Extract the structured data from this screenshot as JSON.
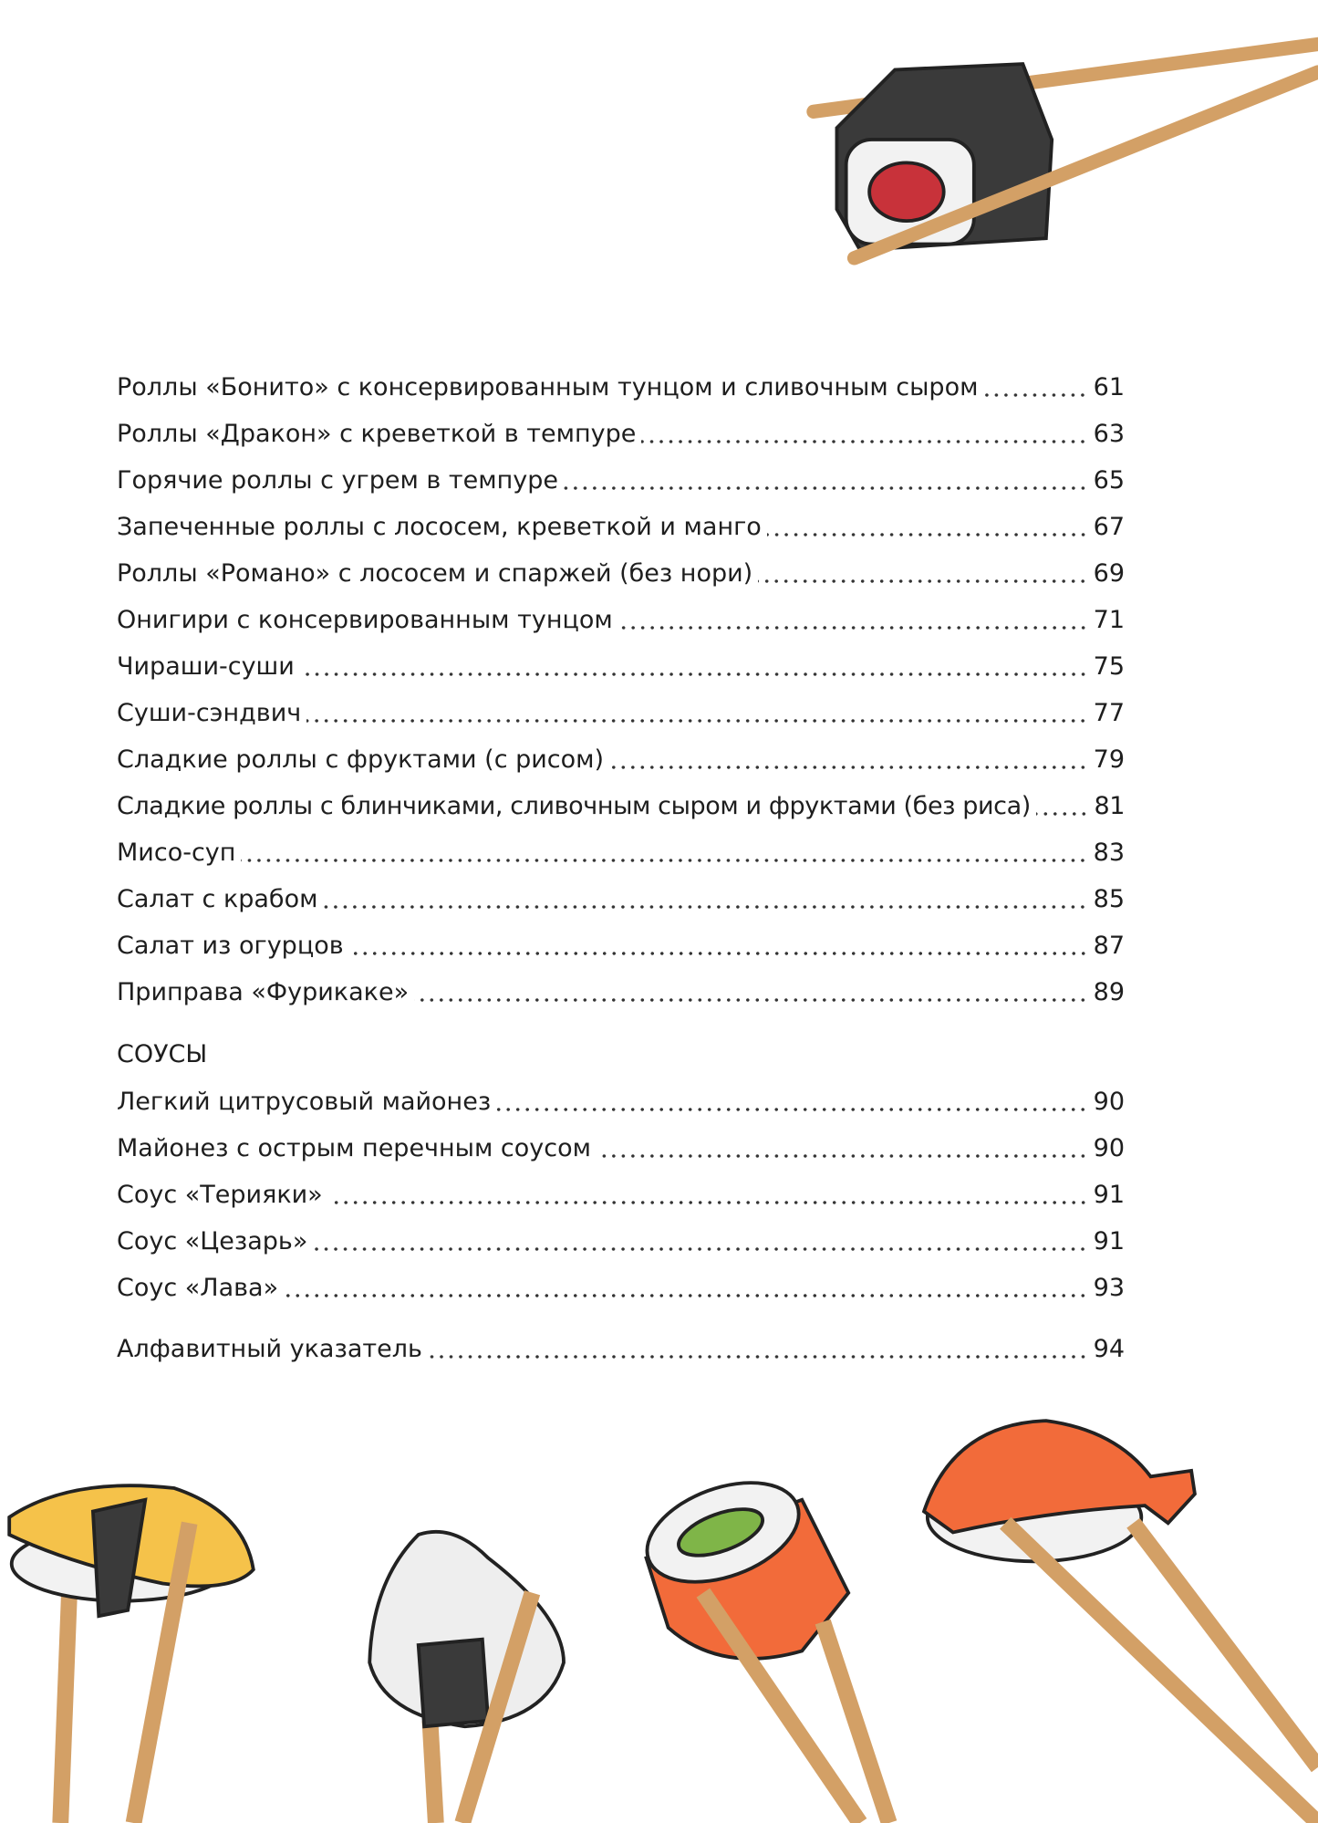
{
  "toc": {
    "entries": [
      {
        "title": "Роллы «Бонито» с консервированным тунцом и сливочным сыром",
        "page": "61"
      },
      {
        "title": "Роллы «Дракон» с креветкой в темпуре",
        "page": "63"
      },
      {
        "title": "Горячие роллы с угрем в темпуре",
        "page": "65"
      },
      {
        "title": "Запеченные роллы с лососем, креветкой и манго",
        "page": "67"
      },
      {
        "title": "Роллы «Романо» с лососем и спаржей (без нори)",
        "page": "69"
      },
      {
        "title": "Онигири с консервированным тунцом",
        "page": "71"
      },
      {
        "title": "Чираши-суши",
        "page": "75"
      },
      {
        "title": "Суши-сэндвич",
        "page": "77"
      },
      {
        "title": "Сладкие роллы с фруктами (с рисом)",
        "page": "79"
      },
      {
        "title": "Сладкие роллы с блинчиками, сливочным сыром и фруктами (без риса)",
        "page": "81"
      },
      {
        "title": "Мисо-суп",
        "page": "83"
      },
      {
        "title": "Салат с крабом",
        "page": "85"
      },
      {
        "title": "Салат из огурцов",
        "page": "87"
      },
      {
        "title": "Приправа «Фурикаке»",
        "page": "89"
      }
    ],
    "sauces_heading": "СОУСЫ",
    "sauces": [
      {
        "title": "Легкий цитрусовый майонез",
        "page": "90"
      },
      {
        "title": "Майонез с острым перечным соусом",
        "page": "90"
      },
      {
        "title": "Соус «Терияки»",
        "page": "91"
      },
      {
        "title": "Соус «Цезарь»",
        "page": "91"
      },
      {
        "title": "Соус «Лава»",
        "page": "93"
      }
    ],
    "index": {
      "title": "Алфавитный указатель",
      "page": "94"
    }
  },
  "colors": {
    "chopstick": "#d3a066",
    "nori": "#3a3a3a",
    "salmon": "#f26b3a",
    "tamago": "#f5c24a",
    "rice": "#f2f2f2",
    "tuna": "#c8323a",
    "cucumber": "#7fb548"
  }
}
